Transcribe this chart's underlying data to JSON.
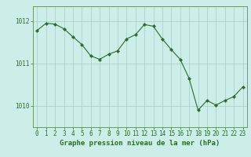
{
  "x": [
    0,
    1,
    2,
    3,
    4,
    5,
    6,
    7,
    8,
    9,
    10,
    11,
    12,
    13,
    14,
    15,
    16,
    17,
    18,
    19,
    20,
    21,
    22,
    23
  ],
  "y": [
    1011.78,
    1011.95,
    1011.93,
    1011.82,
    1011.63,
    1011.45,
    1011.18,
    1011.1,
    1011.22,
    1011.3,
    1011.58,
    1011.68,
    1011.92,
    1011.88,
    1011.58,
    1011.33,
    1011.1,
    1010.65,
    1009.9,
    1010.13,
    1010.02,
    1010.13,
    1010.22,
    1010.45
  ],
  "line_color": "#2d6a2d",
  "marker_color": "#2d6a2d",
  "bg_color": "#cceee8",
  "grid_color": "#aacaca",
  "axis_color": "#5a8a5a",
  "xlabel": "Graphe pression niveau de la mer (hPa)",
  "ylim": [
    1009.5,
    1012.35
  ],
  "yticks": [
    1010,
    1011,
    1012
  ],
  "xticks": [
    0,
    1,
    2,
    3,
    4,
    5,
    6,
    7,
    8,
    9,
    10,
    11,
    12,
    13,
    14,
    15,
    16,
    17,
    18,
    19,
    20,
    21,
    22,
    23
  ],
  "font_color": "#2d6a2d",
  "label_fontsize": 6.5,
  "tick_fontsize": 5.5
}
